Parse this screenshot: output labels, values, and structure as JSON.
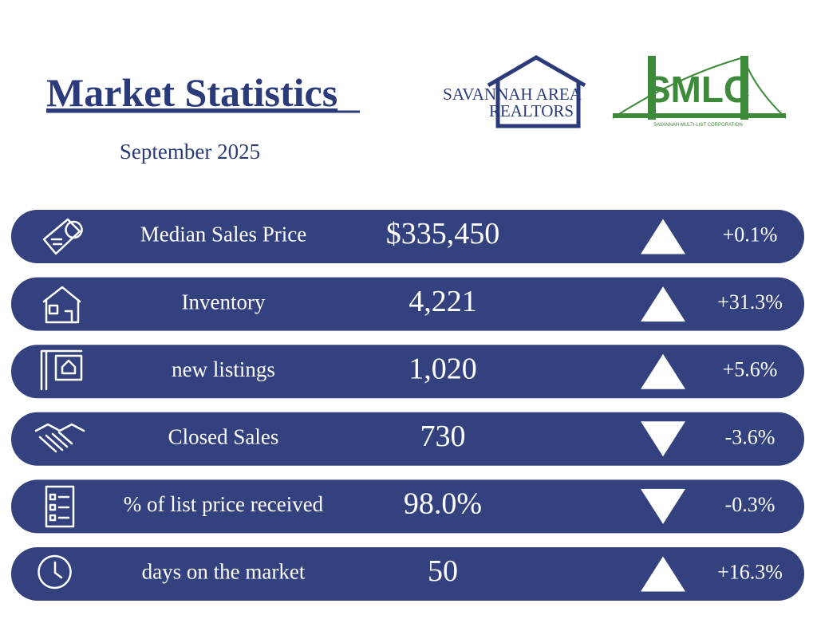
{
  "header": {
    "title": "Market Statistics",
    "subtitle": "September 2025"
  },
  "logos": {
    "realtors_line1": "SAVANNAH AREA",
    "realtors_line2": "REALTORS",
    "smlc": "SMLC",
    "smlc_tagline": "SAVANNAH MULTI-LIST CORPORATION"
  },
  "rows": [
    {
      "label": "Median Sales Price",
      "value": "$335,450",
      "direction": "up",
      "change": "+0.1%"
    },
    {
      "label": "Inventory",
      "value": "4,221",
      "direction": "up",
      "change": "+31.3%"
    },
    {
      "label": "new listings",
      "value": "1,020",
      "direction": "up",
      "change": "+5.6%"
    },
    {
      "label": "Closed Sales",
      "value": "730",
      "direction": "down",
      "change": "-3.6%"
    },
    {
      "label": "% of list price received",
      "value": "98.0%",
      "direction": "down",
      "change": "-0.3%"
    },
    {
      "label": "days on the market",
      "value": "50",
      "direction": "up",
      "change": "+16.3%"
    }
  ]
}
